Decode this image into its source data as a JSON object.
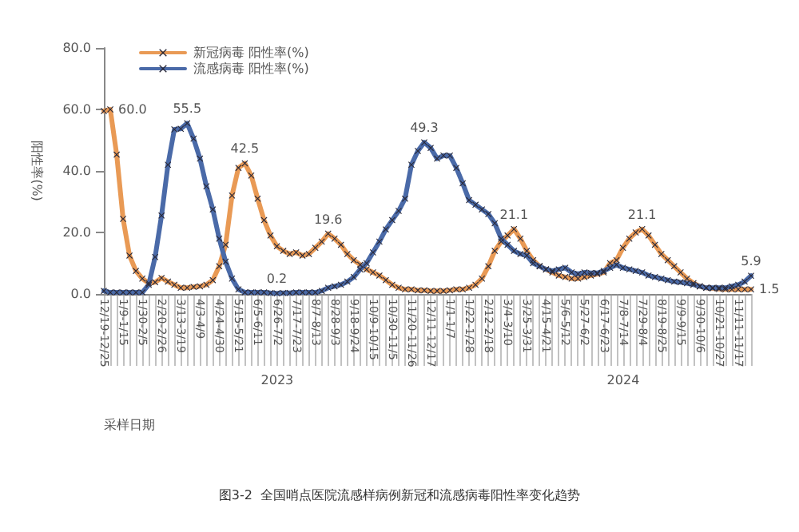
{
  "chart_data": {
    "type": "line",
    "title": "图3-2  全国哨点医院流感样病例新冠和流感病毒阳性率变化趋势",
    "xlabel": "采样日期",
    "ylabel": "阳性率(%)",
    "annotations": [
      "2023",
      "2024"
    ],
    "categories": [
      "12/19-12/25",
      null,
      null,
      "1/9-1/15",
      null,
      null,
      "1/30-2/5",
      null,
      null,
      "2/20-2/26",
      null,
      null,
      "3/13-3/19",
      null,
      null,
      "4/3-4/9",
      null,
      null,
      "4/24-4/30",
      null,
      null,
      "5/15-5/21",
      null,
      null,
      "6/5-6/11",
      null,
      null,
      "6/26-7/2",
      null,
      null,
      "7/17-7/23",
      null,
      null,
      "8/7-8/13",
      null,
      null,
      "8/28-9/3",
      null,
      null,
      "9/18-9/24",
      null,
      null,
      "10/9-10/15",
      null,
      null,
      "10/30-11/5",
      null,
      null,
      "11/20-11/26",
      null,
      null,
      "12/11-12/17",
      null,
      null,
      "1/1-1/7",
      null,
      null,
      "1/22-1/28",
      null,
      null,
      "2/12-2/18",
      null,
      null,
      "3/4-3/10",
      null,
      null,
      "3/25-3/31",
      null,
      null,
      "4/15-4/21",
      null,
      null,
      "5/6-5/12",
      null,
      null,
      "5/27-6/2",
      null,
      null,
      "6/17-6/23",
      null,
      null,
      "7/8-7/14",
      null,
      null,
      "7/29-8/4",
      null,
      null,
      "8/19-8/25",
      null,
      null,
      "9/9-9/15",
      null,
      null,
      "9/30-10/6",
      null,
      null,
      "10/21-10/27",
      null,
      null,
      "11/11-11/17",
      null,
      null
    ],
    "series": [
      {
        "name": "新冠病毒 阳性率(%)",
        "color": "#e99a55",
        "values": [
          59.5,
          60.0,
          45.3,
          24.4,
          12.5,
          7.5,
          5,
          3.5,
          3.8,
          5.2,
          4,
          3,
          2,
          2,
          2.3,
          2.5,
          3,
          4.5,
          9,
          16,
          32,
          41,
          42.5,
          38.5,
          31,
          24,
          19,
          15.5,
          14,
          13,
          13.5,
          12.5,
          13,
          15,
          17,
          19.6,
          18,
          16,
          13,
          11,
          9.5,
          8,
          7,
          6,
          4.5,
          3,
          2,
          1.5,
          1.5,
          1.2,
          1.2,
          1,
          1,
          1,
          1.2,
          1.5,
          1.5,
          2,
          3,
          5,
          9,
          14,
          17,
          19,
          21.1,
          18,
          14,
          11,
          9,
          8,
          7,
          6,
          5.5,
          5,
          5,
          5.5,
          6,
          6.5,
          7,
          10,
          11,
          15,
          18,
          20,
          21.1,
          19,
          16,
          13,
          11,
          9,
          7,
          5,
          3.5,
          2.5,
          2,
          1.8,
          1.6,
          1.5,
          1.5,
          1.5,
          1.5,
          1.5
        ],
        "value_labels": [
          null,
          "60.0",
          null,
          null,
          null,
          null,
          null,
          null,
          null,
          null,
          null,
          null,
          null,
          null,
          null,
          null,
          null,
          null,
          null,
          null,
          null,
          null,
          "42.5",
          null,
          null,
          null,
          null,
          null,
          null,
          null,
          null,
          null,
          null,
          null,
          null,
          "19.6",
          null,
          null,
          null,
          null,
          null,
          null,
          null,
          null,
          null,
          null,
          null,
          null,
          null,
          null,
          null,
          null,
          null,
          null,
          null,
          null,
          null,
          null,
          null,
          null,
          null,
          null,
          null,
          null,
          "21.1",
          null,
          null,
          null,
          null,
          null,
          null,
          null,
          null,
          null,
          null,
          null,
          null,
          null,
          null,
          null,
          null,
          null,
          null,
          null,
          "21.1",
          null,
          null,
          null,
          null,
          null,
          null,
          null,
          null,
          null,
          null,
          null,
          null,
          null,
          null,
          null,
          null,
          "1.5"
        ]
      },
      {
        "name": "流感病毒 阳性率(%)",
        "color": "#4a6aa8",
        "values": [
          1,
          0.5,
          0.5,
          0.5,
          0.5,
          0.5,
          0.5,
          3,
          12,
          25.5,
          42,
          53.5,
          53.7,
          55.5,
          50.5,
          44,
          35,
          27.5,
          18,
          10.5,
          5,
          1.5,
          0.5,
          0.5,
          0.5,
          0.5,
          0.3,
          0.2,
          0.3,
          0.3,
          0.5,
          0.5,
          0.5,
          0.5,
          1,
          2,
          2.5,
          3,
          4,
          5.5,
          8,
          10,
          13.5,
          17,
          21,
          24,
          27,
          31,
          42,
          46.5,
          49.3,
          47.5,
          44,
          45,
          45,
          41,
          36,
          30.5,
          29,
          27.5,
          26,
          23,
          18,
          16,
          14,
          13,
          12.5,
          10,
          9,
          8,
          7.5,
          8,
          8.5,
          7,
          6.5,
          7,
          6.8,
          6.8,
          7.5,
          8.5,
          9.5,
          8.5,
          8,
          7.5,
          7,
          6,
          5.5,
          5,
          4.5,
          4,
          3.8,
          3.5,
          3,
          2.5,
          2,
          2,
          2,
          2,
          2.5,
          3,
          4,
          5.9
        ],
        "value_labels": [
          null,
          null,
          null,
          null,
          null,
          null,
          null,
          null,
          null,
          null,
          null,
          null,
          null,
          "55.5",
          null,
          null,
          null,
          null,
          null,
          null,
          null,
          null,
          null,
          null,
          null,
          null,
          null,
          "0.2",
          null,
          null,
          null,
          null,
          null,
          null,
          null,
          null,
          null,
          null,
          null,
          null,
          null,
          null,
          null,
          null,
          null,
          null,
          null,
          null,
          null,
          null,
          "49.3",
          null,
          null,
          null,
          null,
          null,
          null,
          null,
          null,
          null,
          null,
          null,
          null,
          null,
          null,
          null,
          null,
          null,
          null,
          null,
          null,
          null,
          null,
          null,
          null,
          null,
          null,
          null,
          null,
          null,
          null,
          null,
          null,
          null,
          null,
          null,
          null,
          null,
          null,
          null,
          null,
          null,
          null,
          null,
          null,
          null,
          null,
          null,
          null,
          null,
          null,
          "5.9"
        ]
      }
    ],
    "ylim": [
      0,
      80
    ],
    "yticks": [
      {
        "value": 0,
        "label": "0.0"
      },
      {
        "value": 20,
        "label": "20.0"
      },
      {
        "value": 40,
        "label": "40.0"
      },
      {
        "value": 60,
        "label": "60.0"
      },
      {
        "value": 80,
        "label": "80.0"
      }
    ],
    "grid": false,
    "legend": "top left",
    "marker": "cross",
    "line_style": "solid"
  }
}
